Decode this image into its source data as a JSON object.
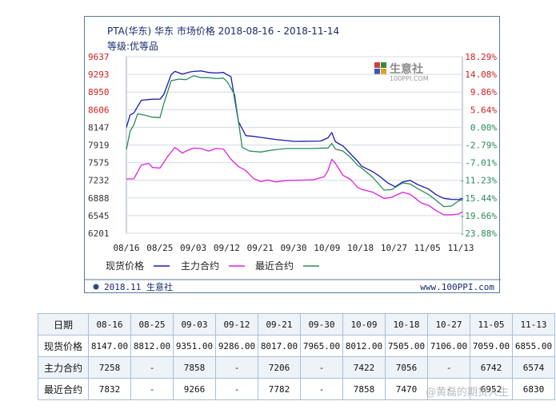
{
  "chart_data": {
    "type": "line",
    "title": "PTA(华东) 华东 市场价格 2018-08-16 - 2018-11-14",
    "subtitle": "等级:优等品",
    "y_left_ticks": [
      "9637",
      "9293",
      "8950",
      "8606",
      "8147",
      "7919",
      "7575",
      "7232",
      "6888",
      "6545",
      "6201"
    ],
    "y_right_ticks": [
      "18.29%",
      "14.08%",
      "9.86%",
      "5.64%",
      "0.00%",
      "-2.79%",
      "-7.01%",
      "-11.23%",
      "-15.44%",
      "-19.66%",
      "-23.88%"
    ],
    "x_tick_labels": [
      "08/16",
      "08/25",
      "09/03",
      "09/12",
      "09/21",
      "09/30",
      "10/09",
      "10/18",
      "10/27",
      "11/05",
      "11/13"
    ],
    "x_range": [
      "2018-08-16",
      "2018-11-14"
    ],
    "ylim": [
      6201,
      9637
    ],
    "series": [
      {
        "name": "现货价格",
        "color": "#1a1ab0",
        "points": [
          [
            "2018-08-16",
            8147
          ],
          [
            "2018-08-17",
            8470
          ],
          [
            "2018-08-18",
            8520
          ],
          [
            "2018-08-20",
            8790
          ],
          [
            "2018-08-23",
            8810
          ],
          [
            "2018-08-25",
            8812
          ],
          [
            "2018-08-26",
            8900
          ],
          [
            "2018-08-28",
            9290
          ],
          [
            "2018-08-29",
            9350
          ],
          [
            "2018-08-31",
            9300
          ],
          [
            "2018-09-02",
            9340
          ],
          [
            "2018-09-03",
            9351
          ],
          [
            "2018-09-05",
            9360
          ],
          [
            "2018-09-07",
            9330
          ],
          [
            "2018-09-09",
            9320
          ],
          [
            "2018-09-11",
            9330
          ],
          [
            "2018-09-12",
            9286
          ],
          [
            "2018-09-13",
            9250
          ],
          [
            "2018-09-15",
            8300
          ],
          [
            "2018-09-17",
            8040
          ],
          [
            "2018-09-19",
            8030
          ],
          [
            "2018-09-21",
            8017
          ],
          [
            "2018-09-25",
            7990
          ],
          [
            "2018-09-30",
            7965
          ],
          [
            "2018-10-07",
            7970
          ],
          [
            "2018-10-09",
            8012
          ],
          [
            "2018-10-10",
            8080
          ],
          [
            "2018-10-11",
            7960
          ],
          [
            "2018-10-13",
            7900
          ],
          [
            "2018-10-15",
            7750
          ],
          [
            "2018-10-17",
            7600
          ],
          [
            "2018-10-18",
            7505
          ],
          [
            "2018-10-21",
            7400
          ],
          [
            "2018-10-23",
            7300
          ],
          [
            "2018-10-25",
            7180
          ],
          [
            "2018-10-27",
            7106
          ],
          [
            "2018-10-29",
            7200
          ],
          [
            "2018-10-31",
            7230
          ],
          [
            "2018-11-02",
            7150
          ],
          [
            "2018-11-05",
            7059
          ],
          [
            "2018-11-07",
            6950
          ],
          [
            "2018-11-09",
            6880
          ],
          [
            "2018-11-11",
            6860
          ],
          [
            "2018-11-13",
            6855
          ],
          [
            "2018-11-14",
            6880
          ]
        ]
      },
      {
        "name": "主力合约",
        "color": "#e020e0",
        "points": [
          [
            "2018-08-16",
            7258
          ],
          [
            "2018-08-18",
            7260
          ],
          [
            "2018-08-20",
            7530
          ],
          [
            "2018-08-22",
            7560
          ],
          [
            "2018-08-23",
            7480
          ],
          [
            "2018-08-25",
            7470
          ],
          [
            "2018-08-27",
            7690
          ],
          [
            "2018-08-29",
            7870
          ],
          [
            "2018-08-31",
            7760
          ],
          [
            "2018-09-01",
            7800
          ],
          [
            "2018-09-03",
            7858
          ],
          [
            "2018-09-05",
            7850
          ],
          [
            "2018-09-07",
            7800
          ],
          [
            "2018-09-09",
            7850
          ],
          [
            "2018-09-11",
            7840
          ],
          [
            "2018-09-13",
            7640
          ],
          [
            "2018-09-15",
            7500
          ],
          [
            "2018-09-17",
            7420
          ],
          [
            "2018-09-19",
            7270
          ],
          [
            "2018-09-21",
            7206
          ],
          [
            "2018-09-23",
            7240
          ],
          [
            "2018-09-25",
            7200
          ],
          [
            "2018-09-28",
            7230
          ],
          [
            "2018-10-05",
            7240
          ],
          [
            "2018-10-08",
            7300
          ],
          [
            "2018-10-09",
            7422
          ],
          [
            "2018-10-10",
            7640
          ],
          [
            "2018-10-11",
            7560
          ],
          [
            "2018-10-13",
            7330
          ],
          [
            "2018-10-15",
            7250
          ],
          [
            "2018-10-17",
            7090
          ],
          [
            "2018-10-18",
            7056
          ],
          [
            "2018-10-21",
            7000
          ],
          [
            "2018-10-24",
            6880
          ],
          [
            "2018-10-26",
            6900
          ],
          [
            "2018-10-29",
            7000
          ],
          [
            "2018-10-31",
            6960
          ],
          [
            "2018-11-03",
            6790
          ],
          [
            "2018-11-05",
            6742
          ],
          [
            "2018-11-07",
            6640
          ],
          [
            "2018-11-09",
            6560
          ],
          [
            "2018-11-11",
            6560
          ],
          [
            "2018-11-13",
            6574
          ],
          [
            "2018-11-14",
            6620
          ]
        ]
      },
      {
        "name": "最近合约",
        "color": "#2a8a5a",
        "points": [
          [
            "2018-08-16",
            7832
          ],
          [
            "2018-08-17",
            8100
          ],
          [
            "2018-08-18",
            8210
          ],
          [
            "2018-08-19",
            8500
          ],
          [
            "2018-08-21",
            8460
          ],
          [
            "2018-08-23",
            8410
          ],
          [
            "2018-08-25",
            8400
          ],
          [
            "2018-08-26",
            8720
          ],
          [
            "2018-08-28",
            9170
          ],
          [
            "2018-08-30",
            9200
          ],
          [
            "2018-09-01",
            9190
          ],
          [
            "2018-09-03",
            9266
          ],
          [
            "2018-09-05",
            9230
          ],
          [
            "2018-09-07",
            9230
          ],
          [
            "2018-09-09",
            9210
          ],
          [
            "2018-09-11",
            9220
          ],
          [
            "2018-09-12",
            9150
          ],
          [
            "2018-09-14",
            8900
          ],
          [
            "2018-09-16",
            7870
          ],
          [
            "2018-09-18",
            7800
          ],
          [
            "2018-09-21",
            7782
          ],
          [
            "2018-09-24",
            7820
          ],
          [
            "2018-09-28",
            7850
          ],
          [
            "2018-10-05",
            7850
          ],
          [
            "2018-10-08",
            7860
          ],
          [
            "2018-10-09",
            7858
          ],
          [
            "2018-10-10",
            7940
          ],
          [
            "2018-10-11",
            7840
          ],
          [
            "2018-10-13",
            7800
          ],
          [
            "2018-10-15",
            7680
          ],
          [
            "2018-10-17",
            7520
          ],
          [
            "2018-10-18",
            7470
          ],
          [
            "2018-10-21",
            7290
          ],
          [
            "2018-10-24",
            7040
          ],
          [
            "2018-10-26",
            7050
          ],
          [
            "2018-10-29",
            7180
          ],
          [
            "2018-10-31",
            7160
          ],
          [
            "2018-11-02",
            7070
          ],
          [
            "2018-11-05",
            6952
          ],
          [
            "2018-11-07",
            6840
          ],
          [
            "2018-11-09",
            6720
          ],
          [
            "2018-11-11",
            6730
          ],
          [
            "2018-11-13",
            6830
          ],
          [
            "2018-11-14",
            6850
          ]
        ]
      }
    ],
    "legend_position": "bottom-left",
    "grid": true
  },
  "watermark": {
    "name": "生意社",
    "url": "100PPI.COM"
  },
  "footer": {
    "left": "2018.11 生意社",
    "right": "www.100PPI.com"
  },
  "table": {
    "dates": [
      "日期",
      "08-16",
      "08-25",
      "09-03",
      "09-12",
      "09-21",
      "09-30",
      "10-09",
      "10-18",
      "10-27",
      "11-05",
      "11-13"
    ],
    "rows": [
      {
        "label": "现货价格",
        "values": [
          "8147.00",
          "8812.00",
          "9351.00",
          "9286.00",
          "8017.00",
          "7965.00",
          "8012.00",
          "7505.00",
          "7106.00",
          "7059.00",
          "6855.00"
        ]
      },
      {
        "label": "主力合约",
        "values": [
          "7258",
          "-",
          "7858",
          "-",
          "7206",
          "-",
          "7422",
          "7056",
          "-",
          "6742",
          "6574"
        ]
      },
      {
        "label": "最近合约",
        "values": [
          "7832",
          "-",
          "9266",
          "-",
          "7782",
          "-",
          "7858",
          "7470",
          "-",
          "6952",
          "6830"
        ]
      }
    ]
  },
  "bottom_watermark": "@黄磊的期货人生"
}
